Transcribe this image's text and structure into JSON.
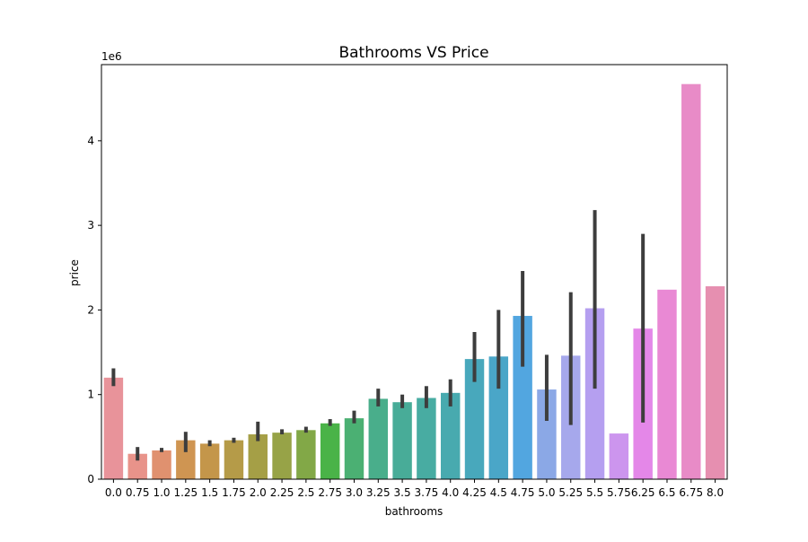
{
  "chart_data": {
    "type": "bar",
    "title": "Bathrooms VS Price",
    "xlabel": "bathrooms",
    "ylabel": "price",
    "y_offset_label": "1e6",
    "y_scale": 1000000,
    "ylim": [
      0,
      4900000
    ],
    "yticks": [
      "0",
      "1",
      "2",
      "3",
      "4"
    ],
    "grid": false,
    "legend": "none",
    "categories": [
      "0.0",
      "0.75",
      "1.0",
      "1.25",
      "1.5",
      "1.75",
      "2.0",
      "2.25",
      "2.5",
      "2.75",
      "3.0",
      "3.25",
      "3.5",
      "3.75",
      "4.0",
      "4.25",
      "4.5",
      "4.75",
      "5.0",
      "5.25",
      "5.5",
      "5.75",
      "6.25",
      "6.5",
      "6.75",
      "8.0"
    ],
    "values": [
      1200000,
      300000,
      340000,
      460000,
      420000,
      460000,
      530000,
      550000,
      580000,
      660000,
      720000,
      950000,
      910000,
      960000,
      1020000,
      1420000,
      1450000,
      1930000,
      1060000,
      1460000,
      2020000,
      540000,
      1780000,
      2240000,
      4670000,
      2280000
    ],
    "error_low": [
      1100000,
      220000,
      320000,
      320000,
      390000,
      430000,
      450000,
      530000,
      550000,
      630000,
      660000,
      860000,
      840000,
      840000,
      860000,
      1150000,
      1070000,
      1330000,
      690000,
      640000,
      1070000,
      null,
      670000,
      null,
      null,
      null
    ],
    "error_high": [
      1310000,
      380000,
      370000,
      560000,
      460000,
      490000,
      680000,
      590000,
      620000,
      710000,
      810000,
      1070000,
      1000000,
      1100000,
      1180000,
      1740000,
      2000000,
      2460000,
      1470000,
      2210000,
      3180000,
      null,
      2900000,
      null,
      null,
      null
    ],
    "colors": [
      "#e8939a",
      "#e8938a",
      "#e0916f",
      "#cf9552",
      "#c4964a",
      "#b59b48",
      "#a59f46",
      "#97a347",
      "#82a847",
      "#4ab348",
      "#4bb073",
      "#49ae8b",
      "#48ac98",
      "#48aca2",
      "#48aaaf",
      "#48a8bc",
      "#4aa6c8",
      "#52a6e0",
      "#8ba8e6",
      "#a6a8ec",
      "#b59ff0",
      "#cc95ee",
      "#e487e8",
      "#e989d4",
      "#e88bc7",
      "#e68fb0"
    ]
  }
}
